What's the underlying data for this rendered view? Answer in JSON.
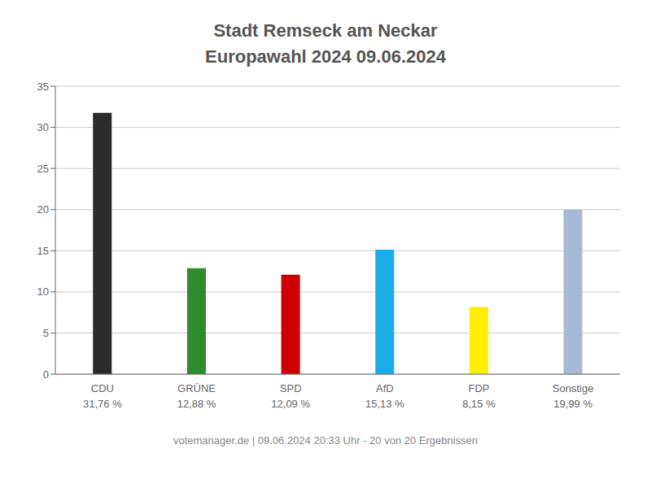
{
  "chart_data": {
    "type": "bar",
    "title": "Stadt Remseck am Neckar",
    "subtitle": "Europawahl 2024 09.06.2024",
    "annotations": [
      "votemanager.de | 09.06.2024 20:33 Uhr - 20 von 20 Ergebnissen"
    ],
    "categories": [
      "CDU\n31,76 %",
      "GRÜNE\n12,88 %",
      "SPD\n12,09 %",
      "AfD\n15,13 %",
      "FDP\n8,15 %",
      "Sonstige\n19,99 %"
    ],
    "values": [
      31.76,
      12.88,
      12.09,
      15.13,
      8.15,
      19.99
    ],
    "colors": [
      "#2b2b2b",
      "#2e8b2e",
      "#cc0000",
      "#1aabea",
      "#ffee00",
      "#a8b8d8"
    ],
    "ylim": [
      0,
      35
    ],
    "yticks": [
      0,
      5,
      10,
      15,
      20,
      25,
      30,
      35
    ],
    "grid": true
  }
}
